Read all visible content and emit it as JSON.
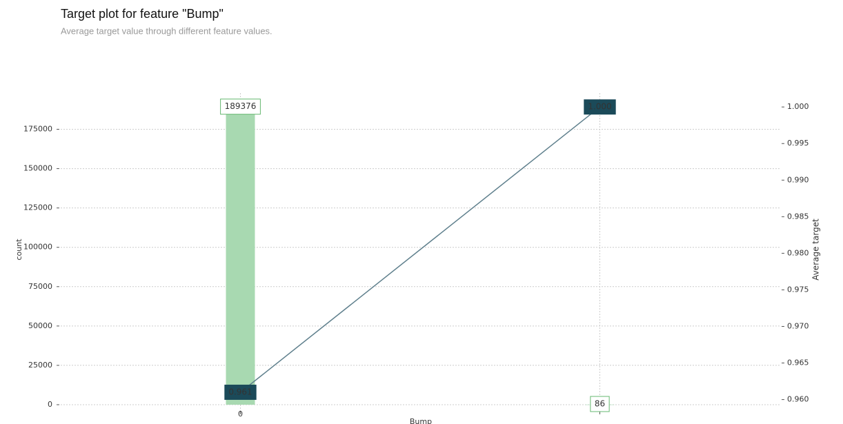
{
  "chart_data": {
    "type": "bar",
    "title": "Target plot for feature \"Bump\"",
    "subtitle": "Average target value through different feature values.",
    "x_label": "Bump",
    "y_label": "count",
    "y2_label": "Average target",
    "categories": [
      "0",
      null
    ],
    "values": [
      189376,
      86
    ],
    "color": "#a8d9b1",
    "label_color": "#66b870",
    "line": {
      "values": [
        0.961,
        1.0
      ],
      "value_labels": [
        "0.961",
        "1.000"
      ],
      "color": "#5e7f8c",
      "label_fill": "#1b4a59",
      "axis": "y2"
    },
    "ylim": [
      0,
      198000
    ],
    "yticks": [
      0,
      25000,
      50000,
      75000,
      100000,
      125000,
      150000,
      175000
    ],
    "y2lim": [
      0.9593,
      1.0019
    ],
    "y2ticks": [
      {
        "value": 0.96,
        "label": "0.960"
      },
      0.965,
      {
        "value": 0.97,
        "label": "0.970"
      },
      0.975,
      {
        "value": 0.98,
        "label": "0.980"
      },
      0.985,
      {
        "value": 0.99,
        "label": "0.990"
      },
      0.995,
      {
        "value": 1.0,
        "label": "1.000"
      }
    ],
    "grid": true
  }
}
